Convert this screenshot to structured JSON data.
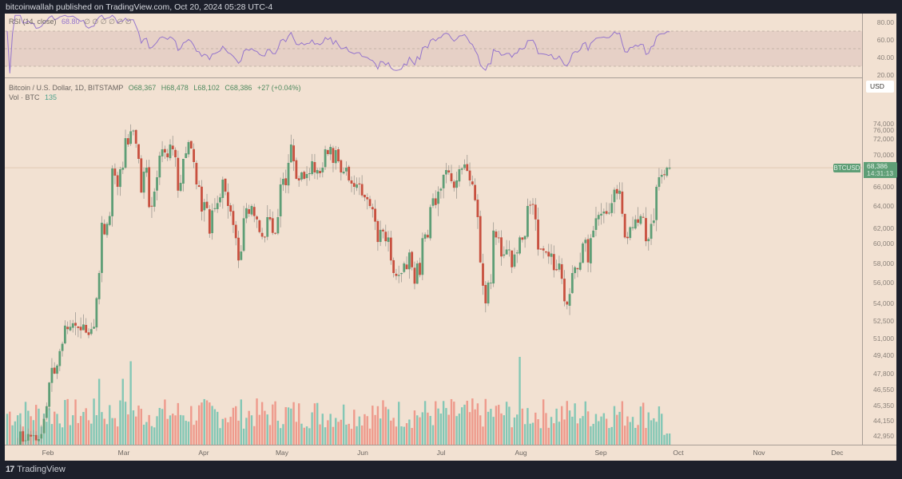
{
  "header": {
    "publisher_text": "bitcoinwallah published on TradingView.com, Oct 20, 2024 05:28 UTC-4"
  },
  "rsi": {
    "label": "RSI (14, close)",
    "value": "68.80",
    "na_marks": "∅ ∅ ∅ ∅ ∅ ∅",
    "axis_ticks": [
      "80.00",
      "60.00",
      "40.00",
      "20.00"
    ],
    "upper_band": 70,
    "lower_band": 30,
    "mid": 50,
    "line_color": "#9575cd"
  },
  "legend": {
    "symbol": "Bitcoin / U.S. Dollar, 1D, BITSTAMP",
    "open": "O68,367",
    "high": "H68,478",
    "low": "L68,102",
    "close": "C68,386",
    "change": "+27 (+0.04%)",
    "vol_label": "Vol · BTC",
    "vol_value": "135"
  },
  "price_axis": {
    "currency": "USD",
    "ticks": [
      "76,000",
      "74,000",
      "72,000",
      "70,000",
      "66,000",
      "64,000",
      "62,000",
      "60,000",
      "58,000",
      "56,000",
      "54,000",
      "52,500",
      "51,000",
      "49,400",
      "47,800",
      "46,550",
      "45,350",
      "44,150",
      "42,950"
    ],
    "last_price_symbol": "BTCUSD",
    "last_price": "68,386",
    "countdown": "14:31:13"
  },
  "time_axis": {
    "months": [
      "Feb",
      "Mar",
      "Apr",
      "May",
      "Jun",
      "Jul",
      "Aug",
      "Sep",
      "Oct",
      "Nov",
      "Dec"
    ]
  },
  "footer": {
    "brand": "TradingView",
    "logo": "17"
  },
  "colors": {
    "up": "#5e9e76",
    "down": "#c8503f",
    "vol_up": "#84c7b5",
    "vol_down": "#ee9a8c",
    "background": "#f2e1d2",
    "frame": "#1d202b"
  },
  "chart_data": {
    "type": "candlestick",
    "title": "Bitcoin / U.S. Dollar, 1D, BITSTAMP",
    "xlabel": "",
    "ylabel": "USD",
    "x_range": [
      "2024-01-23",
      "2024-12-31"
    ],
    "ylim": [
      42000,
      77000
    ],
    "scale": "log-like (price axis non-linear)",
    "grid": false,
    "series": [
      {
        "name": "BTCUSD close (approx, daily, from Jan 23 2024)",
        "values": [
          40000,
          39900,
          40100,
          41800,
          42100,
          43300,
          42500,
          42600,
          43100,
          42900,
          43000,
          42600,
          42700,
          43100,
          44300,
          45300,
          47100,
          48300,
          47800,
          48500,
          49800,
          50500,
          52100,
          51800,
          52000,
          52300,
          52100,
          51900,
          51700,
          52200,
          51500,
          51300,
          51800,
          52000,
          54500,
          57000,
          62500,
          61200,
          62400,
          63100,
          68300,
          67400,
          66000,
          68200,
          68400,
          72100,
          71300,
          73000,
          73100,
          71400,
          69500,
          65400,
          67900,
          68400,
          63900,
          64000,
          65500,
          67200,
          69900,
          70700,
          70300,
          69700,
          71300,
          70700,
          69700,
          65600,
          66500,
          69500,
          70200,
          71600,
          70800,
          69100,
          66300,
          66000,
          63500,
          64400,
          63800,
          61300,
          63600,
          63800,
          64300,
          64900,
          66900,
          65500,
          64000,
          63500,
          62300,
          60700,
          58300,
          59200,
          62900,
          63800,
          63300,
          64000,
          63100,
          62800,
          61500,
          60900,
          60800,
          63000,
          62800,
          61400,
          61300,
          63000,
          66300,
          67000,
          66200,
          69000,
          71300,
          69200,
          67000,
          66800,
          67800,
          67000,
          67600,
          67700,
          69200,
          67800,
          68100,
          67700,
          68400,
          70700,
          70100,
          71000,
          69000,
          70600,
          69200,
          67800,
          67900,
          68400,
          66800,
          66400,
          66000,
          66300,
          66300,
          65100,
          64900,
          64700,
          64000,
          63700,
          62600,
          60200,
          61800,
          61600,
          60300,
          60800,
          58300,
          57000,
          56700,
          56800,
          57000,
          58000,
          57400,
          59100,
          57600,
          55900,
          58000,
          56800,
          60700,
          61200,
          60800,
          63900,
          64800,
          64100,
          65500,
          65800,
          67500,
          68100,
          67800,
          66700,
          65900,
          66800,
          68200,
          68300,
          68800,
          68000,
          66800,
          66300,
          64600,
          63000,
          58100,
          55700,
          54000,
          56000,
          56000,
          61700,
          60800,
          60700,
          58700,
          58900,
          59400,
          59400,
          57600,
          58900,
          59100,
          60800,
          60500,
          61000,
          64000,
          64100,
          64200,
          62800,
          59400,
          59400,
          59300,
          59100,
          58700,
          59000,
          57300,
          57300,
          58000,
          56400,
          54200,
          53900,
          54900,
          57000,
          57600,
          57400,
          58100,
          60000,
          60500,
          58100,
          60700,
          61700,
          62900,
          63200,
          63300,
          63500,
          63300,
          63400,
          64300,
          65700,
          65300,
          65600,
          63300,
          60800,
          60700,
          62100,
          62100,
          62800,
          62500,
          63100,
          63000,
          60300,
          60600,
          62400,
          62700,
          66000,
          67200,
          67500,
          67500,
          68400,
          68400
        ]
      }
    ],
    "volume_series": {
      "name": "Vol · BTC",
      "last": 135
    },
    "rsi_series": {
      "name": "RSI (14, close)",
      "last": 68.8,
      "bands": [
        30,
        50,
        70
      ]
    },
    "annotations": [
      {
        "text": "BTCUSD 68,386",
        "y": 68386
      }
    ]
  }
}
